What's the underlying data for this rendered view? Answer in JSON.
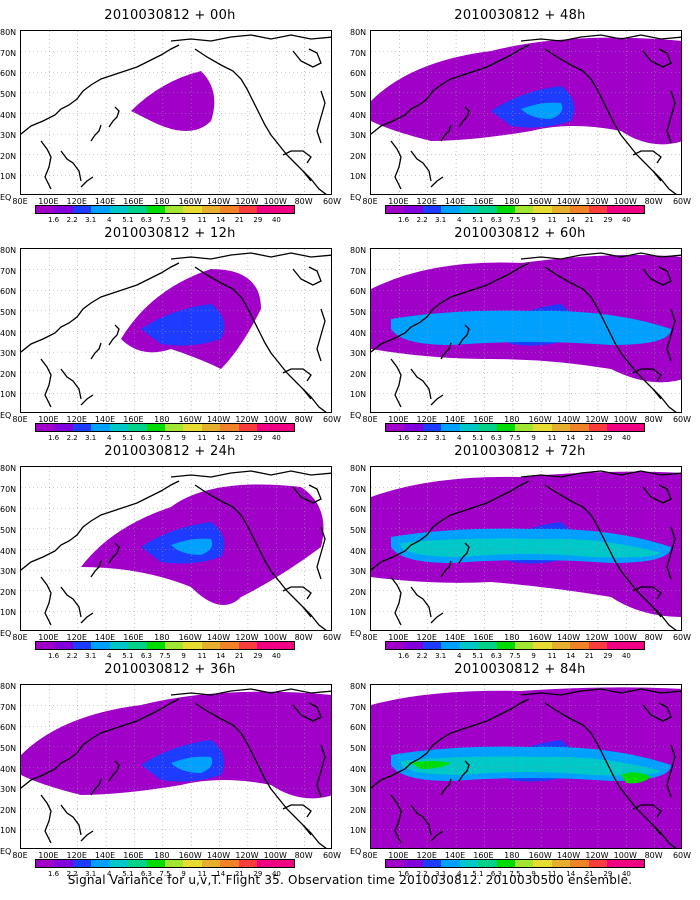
{
  "panels": [
    {
      "title": "2010030812 + 00h",
      "coverage": 1
    },
    {
      "title": "2010030812 + 48h",
      "coverage": 4
    },
    {
      "title": "2010030812 + 12h",
      "coverage": 2
    },
    {
      "title": "2010030812 + 60h",
      "coverage": 5
    },
    {
      "title": "2010030812 + 24h",
      "coverage": 3
    },
    {
      "title": "2010030812 + 72h",
      "coverage": 6
    },
    {
      "title": "2010030812 + 36h",
      "coverage": 4
    },
    {
      "title": "2010030812 + 84h",
      "coverage": 7
    }
  ],
  "lat_labels": [
    "80N",
    "70N",
    "60N",
    "50N",
    "40N",
    "30N",
    "20N",
    "10N",
    "EQ"
  ],
  "lon_labels": [
    "80E",
    "100E",
    "120E",
    "140E",
    "160E",
    "180",
    "160W",
    "140W",
    "120W",
    "100W",
    "80W",
    "60W"
  ],
  "colorbar": {
    "labels": [
      "1.6",
      "2.2",
      "3.1",
      "4",
      "5.1",
      "6.3",
      "7.5",
      "9",
      "11",
      "14",
      "21",
      "29",
      "40"
    ],
    "colors": [
      "#a000c8",
      "#8200dc",
      "#1e3cff",
      "#00a0ff",
      "#00c8c8",
      "#00d28c",
      "#00dc00",
      "#a0e632",
      "#e6dc32",
      "#e6af2d",
      "#f08228",
      "#fa3c3c",
      "#f00082",
      "#f00082"
    ]
  },
  "footer": "Signal Variance for u,v,T. Flight 35. Observation time 2010030812. 2010030500 ensemble."
}
